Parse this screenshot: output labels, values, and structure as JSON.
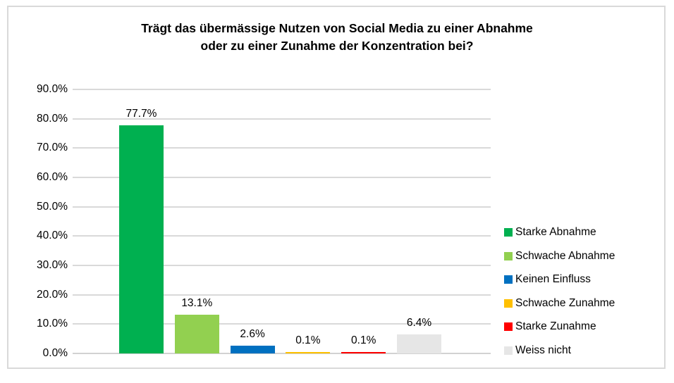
{
  "chart_data": {
    "type": "bar",
    "title": "Trägt das übermässige Nutzen von Social Media zu einer Abnahme oder zu einer Zunahme der Konzentration bei?",
    "title_lines": [
      "Trägt das übermässige Nutzen von Social Media zu einer Abnahme",
      "oder zu einer Zunahme der Konzentration bei?"
    ],
    "categories": [
      "Starke Abnahme",
      "Schwache Abnahme",
      "Keinen Einfluss",
      "Schwache Zunahme",
      "Starke Zunahme",
      "Weiss nicht"
    ],
    "values": [
      77.7,
      13.1,
      2.6,
      0.1,
      0.1,
      6.4
    ],
    "data_labels": [
      "77.7%",
      "13.1%",
      "2.6%",
      "0.1%",
      "0.1%",
      "6.4%"
    ],
    "colors": [
      "#00B050",
      "#92D050",
      "#0070C0",
      "#FFC000",
      "#FF0000",
      "#E6E6E6"
    ],
    "y_tick_labels": [
      "0.0%",
      "10.0%",
      "20.0%",
      "30.0%",
      "40.0%",
      "50.0%",
      "60.0%",
      "70.0%",
      "80.0%",
      "90.0%"
    ],
    "ylim": [
      0,
      90
    ],
    "y_step": 10,
    "grid": true,
    "legend_position": "right",
    "xlabel": "",
    "ylabel": "",
    "gridline_color": "#D9D9D9",
    "axis_line_color": "#D2D2D2",
    "text_color": "#000000"
  }
}
